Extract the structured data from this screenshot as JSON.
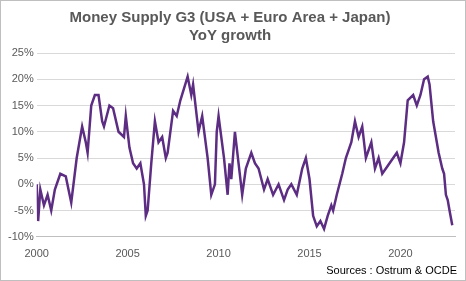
{
  "chart_data": {
    "type": "line",
    "title": "Money Supply G3 (USA + Euro Area + Japan)",
    "subtitle": "YoY growth",
    "annotation": "Sources : Ostrum & OCDE",
    "x": [
      2000.0,
      2000.08,
      2000.2,
      2000.4,
      2000.6,
      2000.8,
      2001.0,
      2001.3,
      2001.6,
      2001.9,
      2002.2,
      2002.5,
      2002.7,
      2002.8,
      2003.0,
      2003.2,
      2003.4,
      2003.6,
      2003.7,
      2004.0,
      2004.2,
      2004.5,
      2004.8,
      2004.9,
      2005.1,
      2005.3,
      2005.5,
      2005.7,
      2005.9,
      2006.0,
      2006.1,
      2006.3,
      2006.5,
      2006.7,
      2006.9,
      2007.1,
      2007.2,
      2007.5,
      2007.7,
      2007.9,
      2008.3,
      2008.5,
      2008.6,
      2008.9,
      2009.1,
      2009.4,
      2009.6,
      2009.8,
      2009.9,
      2010.0,
      2010.3,
      2010.5,
      2010.6,
      2010.7,
      2010.9,
      2011.1,
      2011.3,
      2011.5,
      2011.8,
      2012.0,
      2012.2,
      2012.5,
      2012.7,
      2013.0,
      2013.3,
      2013.6,
      2013.8,
      2014.0,
      2014.3,
      2014.6,
      2014.8,
      2015.0,
      2015.2,
      2015.4,
      2015.6,
      2015.8,
      2016.0,
      2016.2,
      2016.3,
      2016.5,
      2016.8,
      2017.0,
      2017.3,
      2017.5,
      2017.7,
      2017.9,
      2018.1,
      2018.3,
      2018.4,
      2018.6,
      2018.8,
      2019.0,
      2019.2,
      2019.4,
      2019.6,
      2019.8,
      2020.0,
      2020.2,
      2020.4,
      2020.7,
      2020.9,
      2021.1,
      2021.3,
      2021.5,
      2021.6,
      2021.8,
      2022.0,
      2022.1,
      2022.3,
      2022.4,
      2022.5,
      2022.6,
      2022.7,
      2022.85
    ],
    "values": [
      0,
      -7,
      -1,
      -4,
      -2,
      -5,
      -1,
      2,
      1.5,
      -3.5,
      5,
      11,
      8,
      6,
      15,
      17,
      17,
      12,
      11,
      15,
      14.5,
      10,
      9,
      13,
      7,
      4,
      3,
      4,
      0,
      -6,
      -5,
      4,
      12,
      8,
      9,
      5,
      6,
      14,
      13,
      16,
      20.5,
      17,
      19,
      10,
      13,
      5,
      -2,
      0,
      10,
      13,
      5,
      -2,
      4,
      1,
      10,
      4,
      -2,
      3,
      6,
      4,
      3,
      -1,
      1,
      -2,
      0,
      -3,
      -1,
      0,
      -2,
      3,
      5,
      1,
      -6,
      -8,
      -7,
      -8.5,
      -6,
      -4,
      -5,
      -2,
      2,
      5,
      8,
      12,
      9,
      11,
      5,
      7,
      8,
      3,
      5,
      2,
      3,
      4,
      5,
      6,
      4,
      8,
      16,
      17,
      15,
      17,
      20,
      20.5,
      19,
      12,
      8,
      6,
      3,
      2,
      -2,
      -3,
      -5,
      -7.8
    ],
    "color": "#5c2d82",
    "xlim": [
      2000,
      2023
    ],
    "xticks": [
      2000,
      2005,
      2010,
      2015,
      2020
    ],
    "ylim": [
      -10,
      25
    ],
    "yticks": [
      {
        "value": -10,
        "label": "-10%"
      },
      {
        "value": -5,
        "label": "-5%"
      },
      {
        "value": 0,
        "label": "0%"
      },
      {
        "value": 5,
        "label": "5%"
      },
      {
        "value": 10,
        "label": "10%"
      },
      {
        "value": 15,
        "label": "15%"
      },
      {
        "value": 20,
        "label": "20%"
      },
      {
        "value": 25,
        "label": "25%"
      }
    ],
    "grid": true
  }
}
